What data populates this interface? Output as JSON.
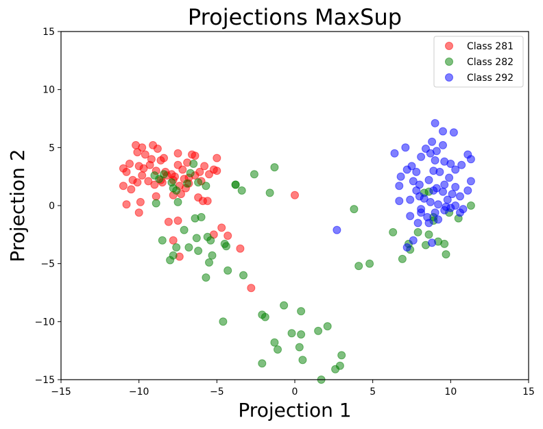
{
  "chart_data": {
    "type": "scatter",
    "title": "Projections MaxSup",
    "xlabel": "Projection 1",
    "ylabel": "Projection 2",
    "xlim": [
      -15,
      15
    ],
    "ylim": [
      -15,
      15
    ],
    "xticks": [
      -15,
      -10,
      -5,
      0,
      5,
      10,
      15
    ],
    "yticks": [
      -15,
      -10,
      -5,
      0,
      5,
      10,
      15
    ],
    "grid": false,
    "legend_position": "top-right",
    "series": [
      {
        "name": "Class 281",
        "color": "#ff0000",
        "points": [
          [
            -10.2,
            5.2
          ],
          [
            -9.8,
            5.0
          ],
          [
            -9.1,
            5.2
          ],
          [
            -8.8,
            4.9
          ],
          [
            -8.4,
            4.1
          ],
          [
            -10.1,
            4.6
          ],
          [
            -9.6,
            4.4
          ],
          [
            -9.2,
            4.0
          ],
          [
            -8.6,
            3.9
          ],
          [
            -11.0,
            3.2
          ],
          [
            -10.6,
            3.6
          ],
          [
            -10.0,
            3.4
          ],
          [
            -9.7,
            3.2
          ],
          [
            -9.3,
            3.5
          ],
          [
            -8.9,
            3.0
          ],
          [
            -8.3,
            2.9
          ],
          [
            -7.9,
            2.7
          ],
          [
            -7.5,
            3.5
          ],
          [
            -7.2,
            3.1
          ],
          [
            -6.9,
            3.7
          ],
          [
            -6.8,
            2.4
          ],
          [
            -6.4,
            4.3
          ],
          [
            -6.1,
            2.9
          ],
          [
            -5.8,
            3.4
          ],
          [
            -5.5,
            2.7
          ],
          [
            -5.2,
            3.1
          ],
          [
            -5.0,
            4.1
          ],
          [
            -5.0,
            3.0
          ],
          [
            -7.5,
            4.5
          ],
          [
            -6.6,
            4.4
          ],
          [
            -10.8,
            2.9
          ],
          [
            -10.4,
            2.2
          ],
          [
            -10.1,
            2.0
          ],
          [
            -9.8,
            2.6
          ],
          [
            -9.4,
            2.1
          ],
          [
            -9.0,
            1.8
          ],
          [
            -8.6,
            2.2
          ],
          [
            -8.2,
            2.6
          ],
          [
            -7.8,
            2.2
          ],
          [
            -7.4,
            1.7
          ],
          [
            -7.1,
            2.3
          ],
          [
            -6.8,
            1.9
          ],
          [
            -6.4,
            2.6
          ],
          [
            -6.0,
            2.1
          ],
          [
            -11.0,
            1.7
          ],
          [
            -10.5,
            1.4
          ],
          [
            -8.9,
            0.8
          ],
          [
            -7.8,
            0.9
          ],
          [
            -7.3,
            1.0
          ],
          [
            -6.2,
            0.7
          ],
          [
            -5.9,
            0.4
          ],
          [
            -5.6,
            0.4
          ],
          [
            -9.9,
            0.3
          ],
          [
            -10.8,
            0.1
          ],
          [
            -10.0,
            -0.6
          ],
          [
            -7.5,
            -1.3
          ],
          [
            -8.1,
            -1.4
          ],
          [
            -4.7,
            -1.9
          ],
          [
            -5.2,
            -2.5
          ],
          [
            -4.3,
            -2.6
          ],
          [
            -7.8,
            -3.0
          ],
          [
            -3.5,
            -3.7
          ],
          [
            -7.4,
            -4.4
          ],
          [
            -2.8,
            -7.1
          ],
          [
            0.0,
            0.9
          ],
          [
            -7.7,
            2.5
          ],
          [
            -8.5,
            2.0
          ],
          [
            -7.0,
            1.5
          ]
        ]
      },
      {
        "name": "Class 282",
        "color": "#008000",
        "points": [
          [
            -9.0,
            2.6
          ],
          [
            -8.7,
            2.3
          ],
          [
            -8.4,
            2.7
          ],
          [
            -7.9,
            2.0
          ],
          [
            -7.6,
            1.3
          ],
          [
            -7.8,
            1.5
          ],
          [
            -6.7,
            2.8
          ],
          [
            -6.5,
            3.6
          ],
          [
            -6.9,
            1.9
          ],
          [
            -6.2,
            2.0
          ],
          [
            -5.7,
            1.7
          ],
          [
            -3.8,
            1.8
          ],
          [
            -3.8,
            1.8
          ],
          [
            -3.4,
            1.3
          ],
          [
            -2.6,
            2.7
          ],
          [
            -1.3,
            3.3
          ],
          [
            -1.6,
            1.1
          ],
          [
            -8.9,
            0.2
          ],
          [
            -7.5,
            0.3
          ],
          [
            -6.4,
            -1.1
          ],
          [
            -6.0,
            -1.0
          ],
          [
            -6.3,
            -2.8
          ],
          [
            -5.6,
            -2.7
          ],
          [
            -5.4,
            -3.0
          ],
          [
            -4.5,
            -3.3
          ],
          [
            -4.4,
            -3.5
          ],
          [
            -7.1,
            -2.1
          ],
          [
            -8.5,
            -3.0
          ],
          [
            -7.6,
            -3.6
          ],
          [
            -7.8,
            -4.3
          ],
          [
            -8.0,
            -4.7
          ],
          [
            -6.2,
            -3.9
          ],
          [
            -6.8,
            -3.6
          ],
          [
            -5.3,
            -4.3
          ],
          [
            -5.5,
            -4.9
          ],
          [
            -4.3,
            -5.6
          ],
          [
            -5.7,
            -6.2
          ],
          [
            -3.3,
            -6.0
          ],
          [
            -4.6,
            -10.0
          ],
          [
            -2.1,
            -9.4
          ],
          [
            -1.9,
            -9.6
          ],
          [
            -0.7,
            -8.6
          ],
          [
            0.4,
            -9.1
          ],
          [
            -0.2,
            -11.0
          ],
          [
            0.4,
            -11.1
          ],
          [
            1.5,
            -10.8
          ],
          [
            2.1,
            -10.4
          ],
          [
            -1.3,
            -11.8
          ],
          [
            -1.1,
            -12.4
          ],
          [
            0.3,
            -12.2
          ],
          [
            0.5,
            -13.3
          ],
          [
            -2.1,
            -13.6
          ],
          [
            3.0,
            -12.9
          ],
          [
            2.9,
            -13.8
          ],
          [
            2.6,
            -14.1
          ],
          [
            1.7,
            -15.0
          ],
          [
            3.8,
            -0.3
          ],
          [
            4.1,
            -5.2
          ],
          [
            4.8,
            -5.0
          ],
          [
            6.3,
            -2.3
          ],
          [
            6.9,
            -4.6
          ],
          [
            7.3,
            -3.3
          ],
          [
            7.4,
            -3.8
          ],
          [
            7.9,
            -2.3
          ],
          [
            8.6,
            -2.5
          ],
          [
            8.9,
            -1.3
          ],
          [
            8.4,
            -3.4
          ],
          [
            9.2,
            -3.1
          ],
          [
            9.6,
            -3.3
          ],
          [
            9.7,
            -4.2
          ],
          [
            10.5,
            -1.1
          ],
          [
            11.3,
            0.0
          ],
          [
            9.9,
            -0.6
          ],
          [
            8.9,
            -1.0
          ],
          [
            8.6,
            1.2
          ],
          [
            8.3,
            1.1
          ]
        ]
      },
      {
        "name": "Class 292",
        "color": "#0000ff",
        "points": [
          [
            9.0,
            7.1
          ],
          [
            9.5,
            6.4
          ],
          [
            10.2,
            6.3
          ],
          [
            8.8,
            5.5
          ],
          [
            9.5,
            5.2
          ],
          [
            8.4,
            4.9
          ],
          [
            9.1,
            4.7
          ],
          [
            8.7,
            4.5
          ],
          [
            6.4,
            4.5
          ],
          [
            7.1,
            5.0
          ],
          [
            7.5,
            3.4
          ],
          [
            8.1,
            4.2
          ],
          [
            9.0,
            3.9
          ],
          [
            9.6,
            3.8
          ],
          [
            10.0,
            3.6
          ],
          [
            11.1,
            4.4
          ],
          [
            11.3,
            4.0
          ],
          [
            7.2,
            3.1
          ],
          [
            7.8,
            2.9
          ],
          [
            8.9,
            3.0
          ],
          [
            9.3,
            2.9
          ],
          [
            9.9,
            2.4
          ],
          [
            10.3,
            3.1
          ],
          [
            10.7,
            3.5
          ],
          [
            6.8,
            2.5
          ],
          [
            7.6,
            2.1
          ],
          [
            8.0,
            1.8
          ],
          [
            8.6,
            2.2
          ],
          [
            9.1,
            1.5
          ],
          [
            9.6,
            1.8
          ],
          [
            10.3,
            1.6
          ],
          [
            11.3,
            2.1
          ],
          [
            6.7,
            1.7
          ],
          [
            7.8,
            1.3
          ],
          [
            8.3,
            0.6
          ],
          [
            8.9,
            1.3
          ],
          [
            9.5,
            1.2
          ],
          [
            10.1,
            1.0
          ],
          [
            10.6,
            0.8
          ],
          [
            11.1,
            1.3
          ],
          [
            6.7,
            0.4
          ],
          [
            7.4,
            0.5
          ],
          [
            8.0,
            0.8
          ],
          [
            8.7,
            0.3
          ],
          [
            9.2,
            0.1
          ],
          [
            9.7,
            -0.1
          ],
          [
            10.3,
            0.0
          ],
          [
            10.8,
            -0.3
          ],
          [
            7.4,
            -0.9
          ],
          [
            8.1,
            -0.6
          ],
          [
            8.5,
            -1.0
          ],
          [
            9.0,
            -0.6
          ],
          [
            9.6,
            -0.4
          ],
          [
            10.0,
            -0.2
          ],
          [
            10.6,
            -0.6
          ],
          [
            7.9,
            -1.5
          ],
          [
            8.6,
            -1.5
          ],
          [
            9.2,
            -1.2
          ],
          [
            7.6,
            -3.0
          ],
          [
            7.2,
            -3.6
          ],
          [
            8.8,
            -3.2
          ],
          [
            2.7,
            -2.1
          ],
          [
            8.1,
            -0.3
          ],
          [
            9.8,
            0.5
          ]
        ]
      }
    ]
  }
}
